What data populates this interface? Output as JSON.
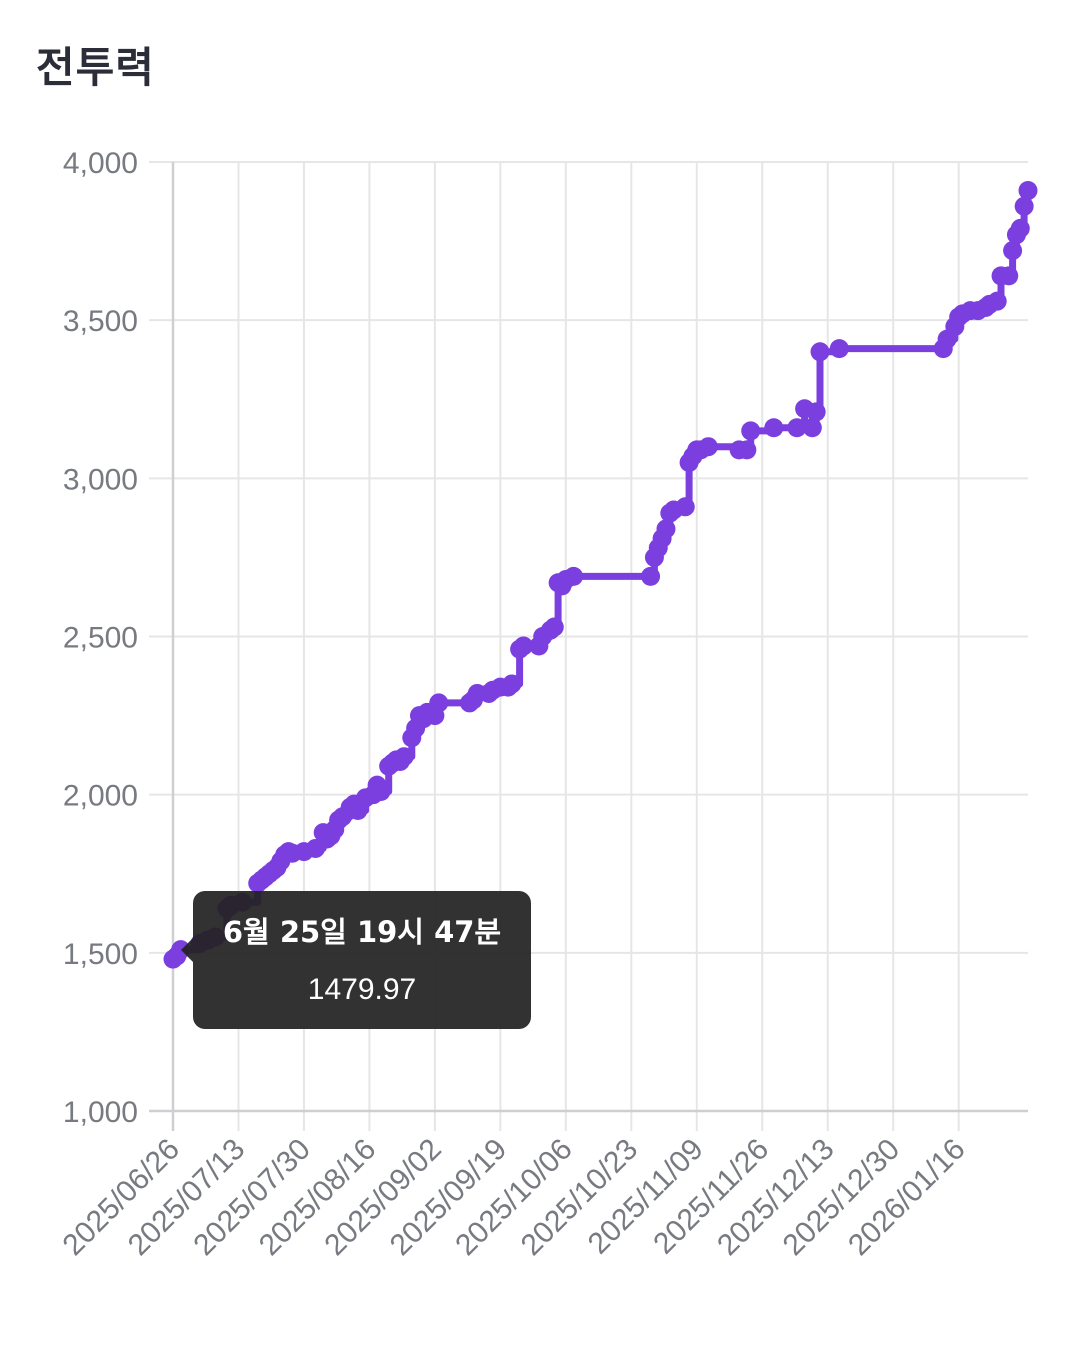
{
  "title": "전투력",
  "colors": {
    "series": "#7b3fe0",
    "grid": "#e6e6e6",
    "axis": "#cfcfd3",
    "tooltip_bg": "#222222"
  },
  "tooltip": {
    "title": "6월 25일 19시 47분",
    "value": "1479.97"
  },
  "chart_data": {
    "type": "line",
    "title": "전투력",
    "xlabel": "",
    "ylabel": "",
    "ylim": [
      1000,
      4000
    ],
    "yticks": [
      "1,000",
      "1,500",
      "2,000",
      "2,500",
      "3,000",
      "3,500",
      "4,000"
    ],
    "xlim": [
      "2025-06-26",
      "2026-02-03"
    ],
    "xticks": [
      "2025/06/26",
      "2025/07/13",
      "2025/07/30",
      "2025/08/16",
      "2025/09/02",
      "2025/09/19",
      "2025/10/06",
      "2025/10/23",
      "2025/11/09",
      "2025/11/26",
      "2025/12/13",
      "2025/12/30",
      "2026/01/16"
    ],
    "grid": true,
    "legend": "none",
    "series": [
      {
        "x": [
          "2025-06-26",
          "2025-06-27",
          "2025-06-28",
          "2025-07-03",
          "2025-07-05",
          "2025-07-07",
          "2025-07-10",
          "2025-07-11",
          "2025-07-14",
          "2025-07-18",
          "2025-07-19",
          "2025-07-20",
          "2025-07-21",
          "2025-07-22",
          "2025-07-23",
          "2025-07-24",
          "2025-07-25",
          "2025-07-26",
          "2025-07-27",
          "2025-07-30",
          "2025-08-02",
          "2025-08-04",
          "2025-08-05",
          "2025-08-06",
          "2025-08-07",
          "2025-08-08",
          "2025-08-09",
          "2025-08-11",
          "2025-08-12",
          "2025-08-13",
          "2025-08-15",
          "2025-08-17",
          "2025-08-18",
          "2025-08-19",
          "2025-08-21",
          "2025-08-22",
          "2025-08-23",
          "2025-08-24",
          "2025-08-25",
          "2025-08-27",
          "2025-08-28",
          "2025-08-29",
          "2025-08-30",
          "2025-08-31",
          "2025-09-02",
          "2025-09-03",
          "2025-09-11",
          "2025-09-12",
          "2025-09-13",
          "2025-09-16",
          "2025-09-17",
          "2025-09-19",
          "2025-09-21",
          "2025-09-22",
          "2025-09-24",
          "2025-09-25",
          "2025-09-29",
          "2025-09-30",
          "2025-10-02",
          "2025-10-03",
          "2025-10-04",
          "2025-10-05",
          "2025-10-06",
          "2025-10-08",
          "2025-10-28",
          "2025-10-29",
          "2025-10-30",
          "2025-10-31",
          "2025-11-01",
          "2025-11-02",
          "2025-11-03",
          "2025-11-06",
          "2025-11-07",
          "2025-11-08",
          "2025-11-09",
          "2025-11-10",
          "2025-11-12",
          "2025-11-20",
          "2025-11-22",
          "2025-11-23",
          "2025-11-29",
          "2025-12-05",
          "2025-12-07",
          "2025-12-09",
          "2025-12-10",
          "2025-12-11",
          "2025-12-16",
          "2026-01-12",
          "2026-01-13",
          "2026-01-15",
          "2026-01-16",
          "2026-01-17",
          "2026-01-19",
          "2026-01-21",
          "2026-01-23",
          "2026-01-24",
          "2026-01-26",
          "2026-01-27",
          "2026-01-29",
          "2026-01-30",
          "2026-01-31",
          "2026-02-01",
          "2026-02-02",
          "2026-02-03"
        ],
        "y": [
          1480,
          1490,
          1510,
          1530,
          1540,
          1550,
          1640,
          1650,
          1660,
          1720,
          1730,
          1740,
          1750,
          1760,
          1770,
          1790,
          1810,
          1820,
          1815,
          1820,
          1830,
          1880,
          1860,
          1870,
          1890,
          1920,
          1930,
          1960,
          1970,
          1950,
          1990,
          2000,
          2030,
          2010,
          2090,
          2100,
          2110,
          2105,
          2120,
          2180,
          2210,
          2250,
          2240,
          2260,
          2250,
          2290,
          2290,
          2300,
          2320,
          2320,
          2330,
          2340,
          2340,
          2350,
          2460,
          2470,
          2470,
          2500,
          2520,
          2530,
          2670,
          2660,
          2680,
          2690,
          2690,
          2750,
          2780,
          2810,
          2840,
          2890,
          2900,
          2910,
          3050,
          3070,
          3090,
          3090,
          3100,
          3090,
          3090,
          3150,
          3160,
          3160,
          3220,
          3160,
          3210,
          3400,
          3410,
          3410,
          3440,
          3480,
          3510,
          3520,
          3530,
          3530,
          3540,
          3550,
          3560,
          3640,
          3640,
          3720,
          3770,
          3790,
          3860,
          3910
        ]
      }
    ]
  }
}
